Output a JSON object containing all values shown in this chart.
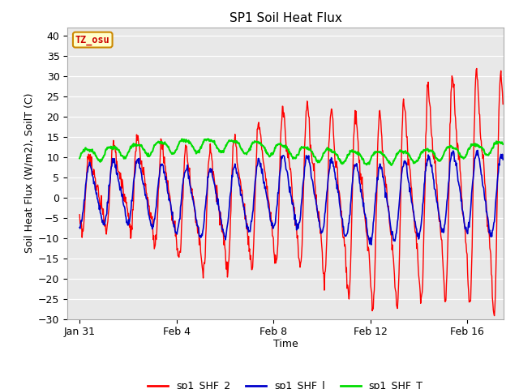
{
  "title": "SP1 Soil Heat Flux",
  "xlabel": "Time",
  "ylabel": "Soil Heat Flux (W/m2), SoilT (C)",
  "ylim": [
    -30,
    42
  ],
  "yticks": [
    -30,
    -25,
    -20,
    -15,
    -10,
    -5,
    0,
    5,
    10,
    15,
    20,
    25,
    30,
    35,
    40
  ],
  "colors": {
    "shf2": "#ff0000",
    "shf1": "#0000cc",
    "shfT": "#00dd00"
  },
  "legend_labels": [
    "sp1_SHF_2",
    "sp1_SHF_l",
    "sp1_SHF_T"
  ],
  "tz_label": "TZ_osu",
  "tz_bg": "#ffffcc",
  "tz_border": "#cc8800",
  "tz_text_color": "#cc0000",
  "fig_bg": "#ffffff",
  "plot_bg": "#e8e8e8",
  "x_ticks_labels": [
    "Jan 31",
    "Feb 4",
    "Feb 8",
    "Feb 12",
    "Feb 16"
  ],
  "x_ticks_days": [
    0,
    4,
    8,
    12,
    16
  ],
  "xlim": [
    -0.5,
    17.5
  ],
  "linewidth_shf2": 1.0,
  "linewidth_shf1": 1.2,
  "linewidth_shfT": 1.5
}
